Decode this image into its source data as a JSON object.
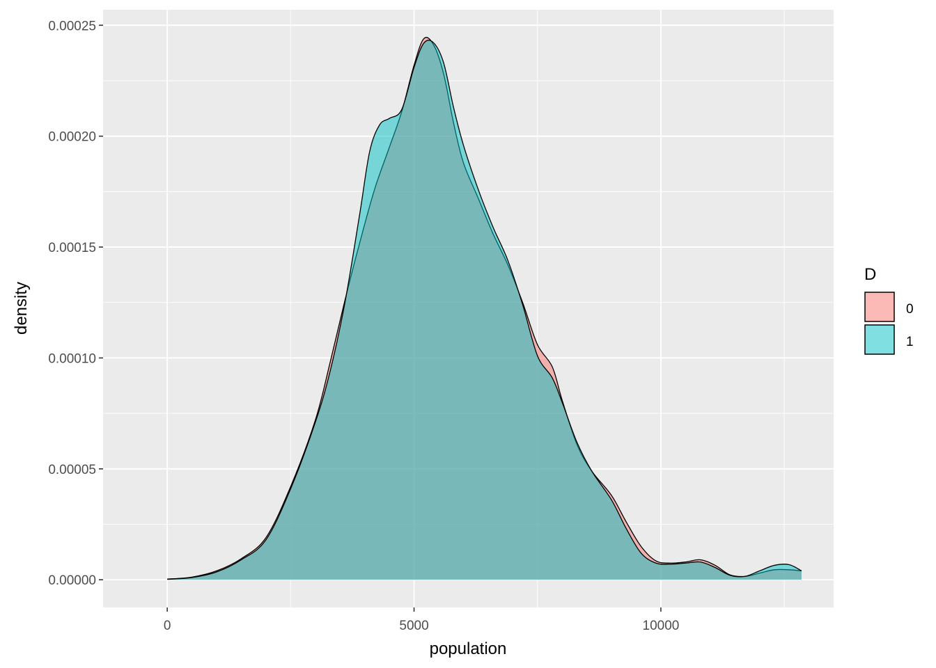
{
  "chart_data": {
    "type": "area",
    "subtype": "density",
    "xlabel": "population",
    "ylabel": "density",
    "xlim": [
      -1300,
      13500
    ],
    "ylim": [
      -1.25e-05,
      0.000257
    ],
    "x_ticks": [
      {
        "value": 0,
        "label": "0"
      },
      {
        "value": 5000,
        "label": "5000"
      },
      {
        "value": 10000,
        "label": "10000"
      }
    ],
    "y_ticks": [
      {
        "value": 0,
        "label": "0.00000"
      },
      {
        "value": 5e-05,
        "label": "0.00005"
      },
      {
        "value": 0.0001,
        "label": "0.00010"
      },
      {
        "value": 0.00015,
        "label": "0.00015"
      },
      {
        "value": 0.0002,
        "label": "0.00020"
      },
      {
        "value": 0.00025,
        "label": "0.00025"
      }
    ],
    "grid": true,
    "panel_background": "#EBEBEB",
    "legend": {
      "title": "D",
      "position": "right"
    },
    "fill_alpha": 0.5,
    "series": [
      {
        "name": "0",
        "color": "#F8766D",
        "points": [
          [
            0,
            3e-07
          ],
          [
            500,
            1.2e-06
          ],
          [
            1000,
            4e-06
          ],
          [
            1500,
            9.5e-06
          ],
          [
            2000,
            1.9e-05
          ],
          [
            2500,
            4.2e-05
          ],
          [
            3000,
            7.2e-05
          ],
          [
            3300,
            9.8e-05
          ],
          [
            3600,
            0.000126
          ],
          [
            3900,
            0.000152
          ],
          [
            4200,
            0.000176
          ],
          [
            4500,
            0.000195
          ],
          [
            4750,
            0.000211
          ],
          [
            5000,
            0.000232
          ],
          [
            5200,
            0.000244
          ],
          [
            5400,
            0.000241
          ],
          [
            5600,
            0.000228
          ],
          [
            5800,
            0.000206
          ],
          [
            6000,
            0.000188
          ],
          [
            6300,
            0.000172
          ],
          [
            6600,
            0.000156
          ],
          [
            6900,
            0.000142
          ],
          [
            7200,
            0.000125
          ],
          [
            7500,
            0.000106
          ],
          [
            7800,
            9.6e-05
          ],
          [
            8000,
            8.1e-05
          ],
          [
            8300,
            6.1e-05
          ],
          [
            8600,
            4.9e-05
          ],
          [
            9000,
            3.8e-05
          ],
          [
            9300,
            2.6e-05
          ],
          [
            9600,
            1.5e-05
          ],
          [
            9900,
            8.5e-06
          ],
          [
            10200,
            7.5e-06
          ],
          [
            10500,
            8e-06
          ],
          [
            10800,
            9e-06
          ],
          [
            11100,
            6.5e-06
          ],
          [
            11400,
            2.2e-06
          ],
          [
            11700,
            1.5e-06
          ],
          [
            12000,
            3e-06
          ],
          [
            12300,
            4.5e-06
          ],
          [
            12600,
            4.5e-06
          ],
          [
            12850,
            4e-06
          ]
        ]
      },
      {
        "name": "1",
        "color": "#00BFC4",
        "points": [
          [
            0,
            2e-07
          ],
          [
            500,
            1e-06
          ],
          [
            1000,
            3.5e-06
          ],
          [
            1500,
            9e-06
          ],
          [
            2000,
            1.8e-05
          ],
          [
            2500,
            4.1e-05
          ],
          [
            3000,
            7.1e-05
          ],
          [
            3300,
            9.4e-05
          ],
          [
            3600,
            0.000125
          ],
          [
            3900,
            0.000165
          ],
          [
            4100,
            0.000193
          ],
          [
            4300,
            0.000205
          ],
          [
            4500,
            0.000208
          ],
          [
            4750,
            0.000212
          ],
          [
            5000,
            0.000231
          ],
          [
            5200,
            0.000242
          ],
          [
            5400,
            0.000242
          ],
          [
            5600,
            0.000233
          ],
          [
            5800,
            0.000213
          ],
          [
            6000,
            0.000196
          ],
          [
            6300,
            0.000176
          ],
          [
            6600,
            0.000159
          ],
          [
            6900,
            0.000144
          ],
          [
            7200,
            0.000124
          ],
          [
            7500,
            0.000101
          ],
          [
            7800,
            9.1e-05
          ],
          [
            8000,
            8e-05
          ],
          [
            8300,
            6.2e-05
          ],
          [
            8600,
            4.9e-05
          ],
          [
            9000,
            3.6e-05
          ],
          [
            9300,
            2.3e-05
          ],
          [
            9600,
            1.2e-05
          ],
          [
            9900,
            7.5e-06
          ],
          [
            10200,
            7e-06
          ],
          [
            10500,
            7.5e-06
          ],
          [
            10800,
            8e-06
          ],
          [
            11100,
            5.5e-06
          ],
          [
            11400,
            2e-06
          ],
          [
            11700,
            1.5e-06
          ],
          [
            12000,
            4e-06
          ],
          [
            12300,
            6.5e-06
          ],
          [
            12600,
            6.8e-06
          ],
          [
            12850,
            4e-06
          ]
        ]
      }
    ]
  }
}
